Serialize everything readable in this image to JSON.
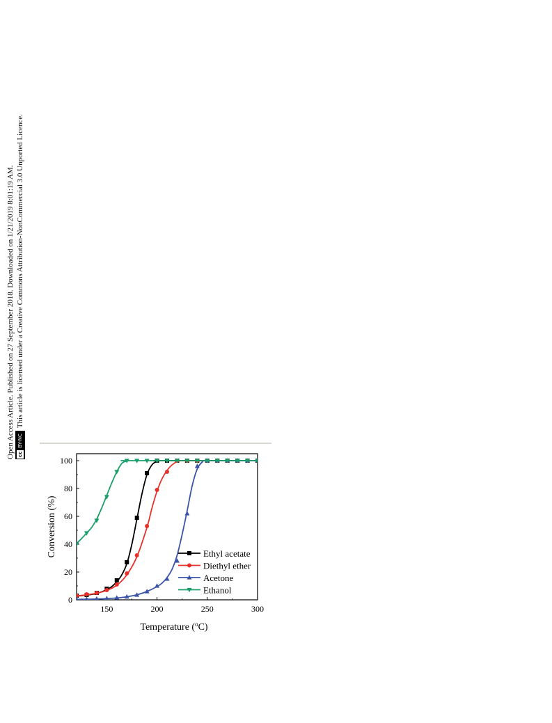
{
  "side_text": {
    "line1": "Open Access Article. Published on 27 September 2018. Downloaded on 1/21/2019 8:01:19 AM.",
    "line2": "This article is licensed under a Creative Commons Attribution-NonCommercial 3.0 Unported Licence.",
    "badge_cc": "cc",
    "badge_label": "BY-NC"
  },
  "chart_data": {
    "type": "line",
    "xlabel": "Temperature (°C)",
    "xlabel_main": "Temperature (",
    "xlabel_sup": "o",
    "xlabel_end": "C)",
    "ylabel": "Conversion (%)",
    "xlim": [
      120,
      300
    ],
    "ylim": [
      0,
      105
    ],
    "xticks": [
      150,
      200,
      250,
      300
    ],
    "yticks": [
      0,
      20,
      40,
      60,
      80,
      100
    ],
    "legend_position": "bottom-right",
    "series": [
      {
        "name": "Ethyl acetate",
        "color": "#000000",
        "marker": "square",
        "points": [
          [
            120,
            3
          ],
          [
            130,
            3.5
          ],
          [
            140,
            5
          ],
          [
            150,
            8
          ],
          [
            160,
            14
          ],
          [
            170,
            27
          ],
          [
            180,
            59
          ],
          [
            190,
            91
          ],
          [
            200,
            100
          ],
          [
            210,
            100
          ],
          [
            220,
            100
          ],
          [
            230,
            100
          ],
          [
            240,
            100
          ],
          [
            250,
            100
          ],
          [
            260,
            100
          ],
          [
            270,
            100
          ],
          [
            280,
            100
          ],
          [
            290,
            100
          ],
          [
            300,
            100
          ]
        ],
        "curve": [
          [
            120,
            2.7
          ],
          [
            130,
            3.4
          ],
          [
            140,
            4.6
          ],
          [
            150,
            7.3
          ],
          [
            155,
            9.5
          ],
          [
            160,
            13
          ],
          [
            165,
            18
          ],
          [
            170,
            26
          ],
          [
            175,
            40
          ],
          [
            180,
            58
          ],
          [
            185,
            76
          ],
          [
            190,
            90
          ],
          [
            195,
            97
          ],
          [
            200,
            99.5
          ],
          [
            205,
            100
          ],
          [
            300,
            100
          ]
        ]
      },
      {
        "name": "Diethyl ether",
        "color": "#e8312a",
        "marker": "circle",
        "points": [
          [
            120,
            3
          ],
          [
            130,
            4
          ],
          [
            140,
            5
          ],
          [
            150,
            7
          ],
          [
            160,
            11
          ],
          [
            170,
            19
          ],
          [
            180,
            32
          ],
          [
            190,
            53
          ],
          [
            200,
            79
          ],
          [
            210,
            92
          ],
          [
            220,
            100
          ],
          [
            230,
            100
          ],
          [
            240,
            100
          ],
          [
            250,
            100
          ],
          [
            260,
            100
          ],
          [
            270,
            100
          ],
          [
            280,
            100
          ],
          [
            290,
            100
          ],
          [
            300,
            100
          ]
        ],
        "curve": [
          [
            120,
            2.8
          ],
          [
            130,
            3.6
          ],
          [
            140,
            4.8
          ],
          [
            150,
            6.8
          ],
          [
            160,
            10.5
          ],
          [
            170,
            18
          ],
          [
            180,
            31
          ],
          [
            190,
            52
          ],
          [
            195,
            66
          ],
          [
            200,
            78
          ],
          [
            205,
            87
          ],
          [
            210,
            93
          ],
          [
            215,
            97
          ],
          [
            220,
            99.3
          ],
          [
            225,
            100
          ],
          [
            300,
            100
          ]
        ]
      },
      {
        "name": "Acetone",
        "color": "#3a55a8",
        "marker": "triangle-up",
        "points": [
          [
            120,
            0.5
          ],
          [
            130,
            0.5
          ],
          [
            140,
            0.7
          ],
          [
            150,
            1
          ],
          [
            160,
            1.5
          ],
          [
            170,
            2.2
          ],
          [
            180,
            3.5
          ],
          [
            190,
            6
          ],
          [
            200,
            10
          ],
          [
            210,
            15
          ],
          [
            220,
            28
          ],
          [
            230,
            62
          ],
          [
            240,
            96
          ],
          [
            250,
            100
          ],
          [
            260,
            100
          ],
          [
            270,
            100
          ],
          [
            280,
            100
          ],
          [
            290,
            100
          ],
          [
            300,
            100
          ]
        ],
        "curve": [
          [
            120,
            0.3
          ],
          [
            140,
            0.6
          ],
          [
            160,
            1.3
          ],
          [
            170,
            2.2
          ],
          [
            180,
            3.6
          ],
          [
            190,
            6
          ],
          [
            200,
            9.5
          ],
          [
            205,
            12
          ],
          [
            210,
            16
          ],
          [
            215,
            22
          ],
          [
            220,
            32
          ],
          [
            225,
            47
          ],
          [
            230,
            64
          ],
          [
            235,
            82
          ],
          [
            240,
            94
          ],
          [
            245,
            99
          ],
          [
            250,
            100
          ],
          [
            300,
            100
          ]
        ]
      },
      {
        "name": "Ethanol",
        "color": "#1a9e6a",
        "marker": "triangle-down",
        "points": [
          [
            120,
            40
          ],
          [
            130,
            48
          ],
          [
            140,
            57
          ],
          [
            150,
            74
          ],
          [
            160,
            92
          ],
          [
            170,
            100
          ],
          [
            180,
            100
          ],
          [
            190,
            100
          ],
          [
            200,
            100
          ],
          [
            210,
            100
          ],
          [
            220,
            100
          ],
          [
            230,
            100
          ],
          [
            240,
            100
          ],
          [
            250,
            100
          ],
          [
            260,
            100
          ],
          [
            270,
            100
          ],
          [
            280,
            100
          ],
          [
            290,
            100
          ],
          [
            300,
            100
          ]
        ],
        "curve": [
          [
            120,
            40.5
          ],
          [
            125,
            44
          ],
          [
            130,
            48
          ],
          [
            135,
            52
          ],
          [
            140,
            58
          ],
          [
            145,
            66
          ],
          [
            150,
            75
          ],
          [
            155,
            84
          ],
          [
            160,
            92
          ],
          [
            165,
            98
          ],
          [
            170,
            99.8
          ],
          [
            175,
            100
          ],
          [
            300,
            100
          ]
        ]
      }
    ]
  }
}
